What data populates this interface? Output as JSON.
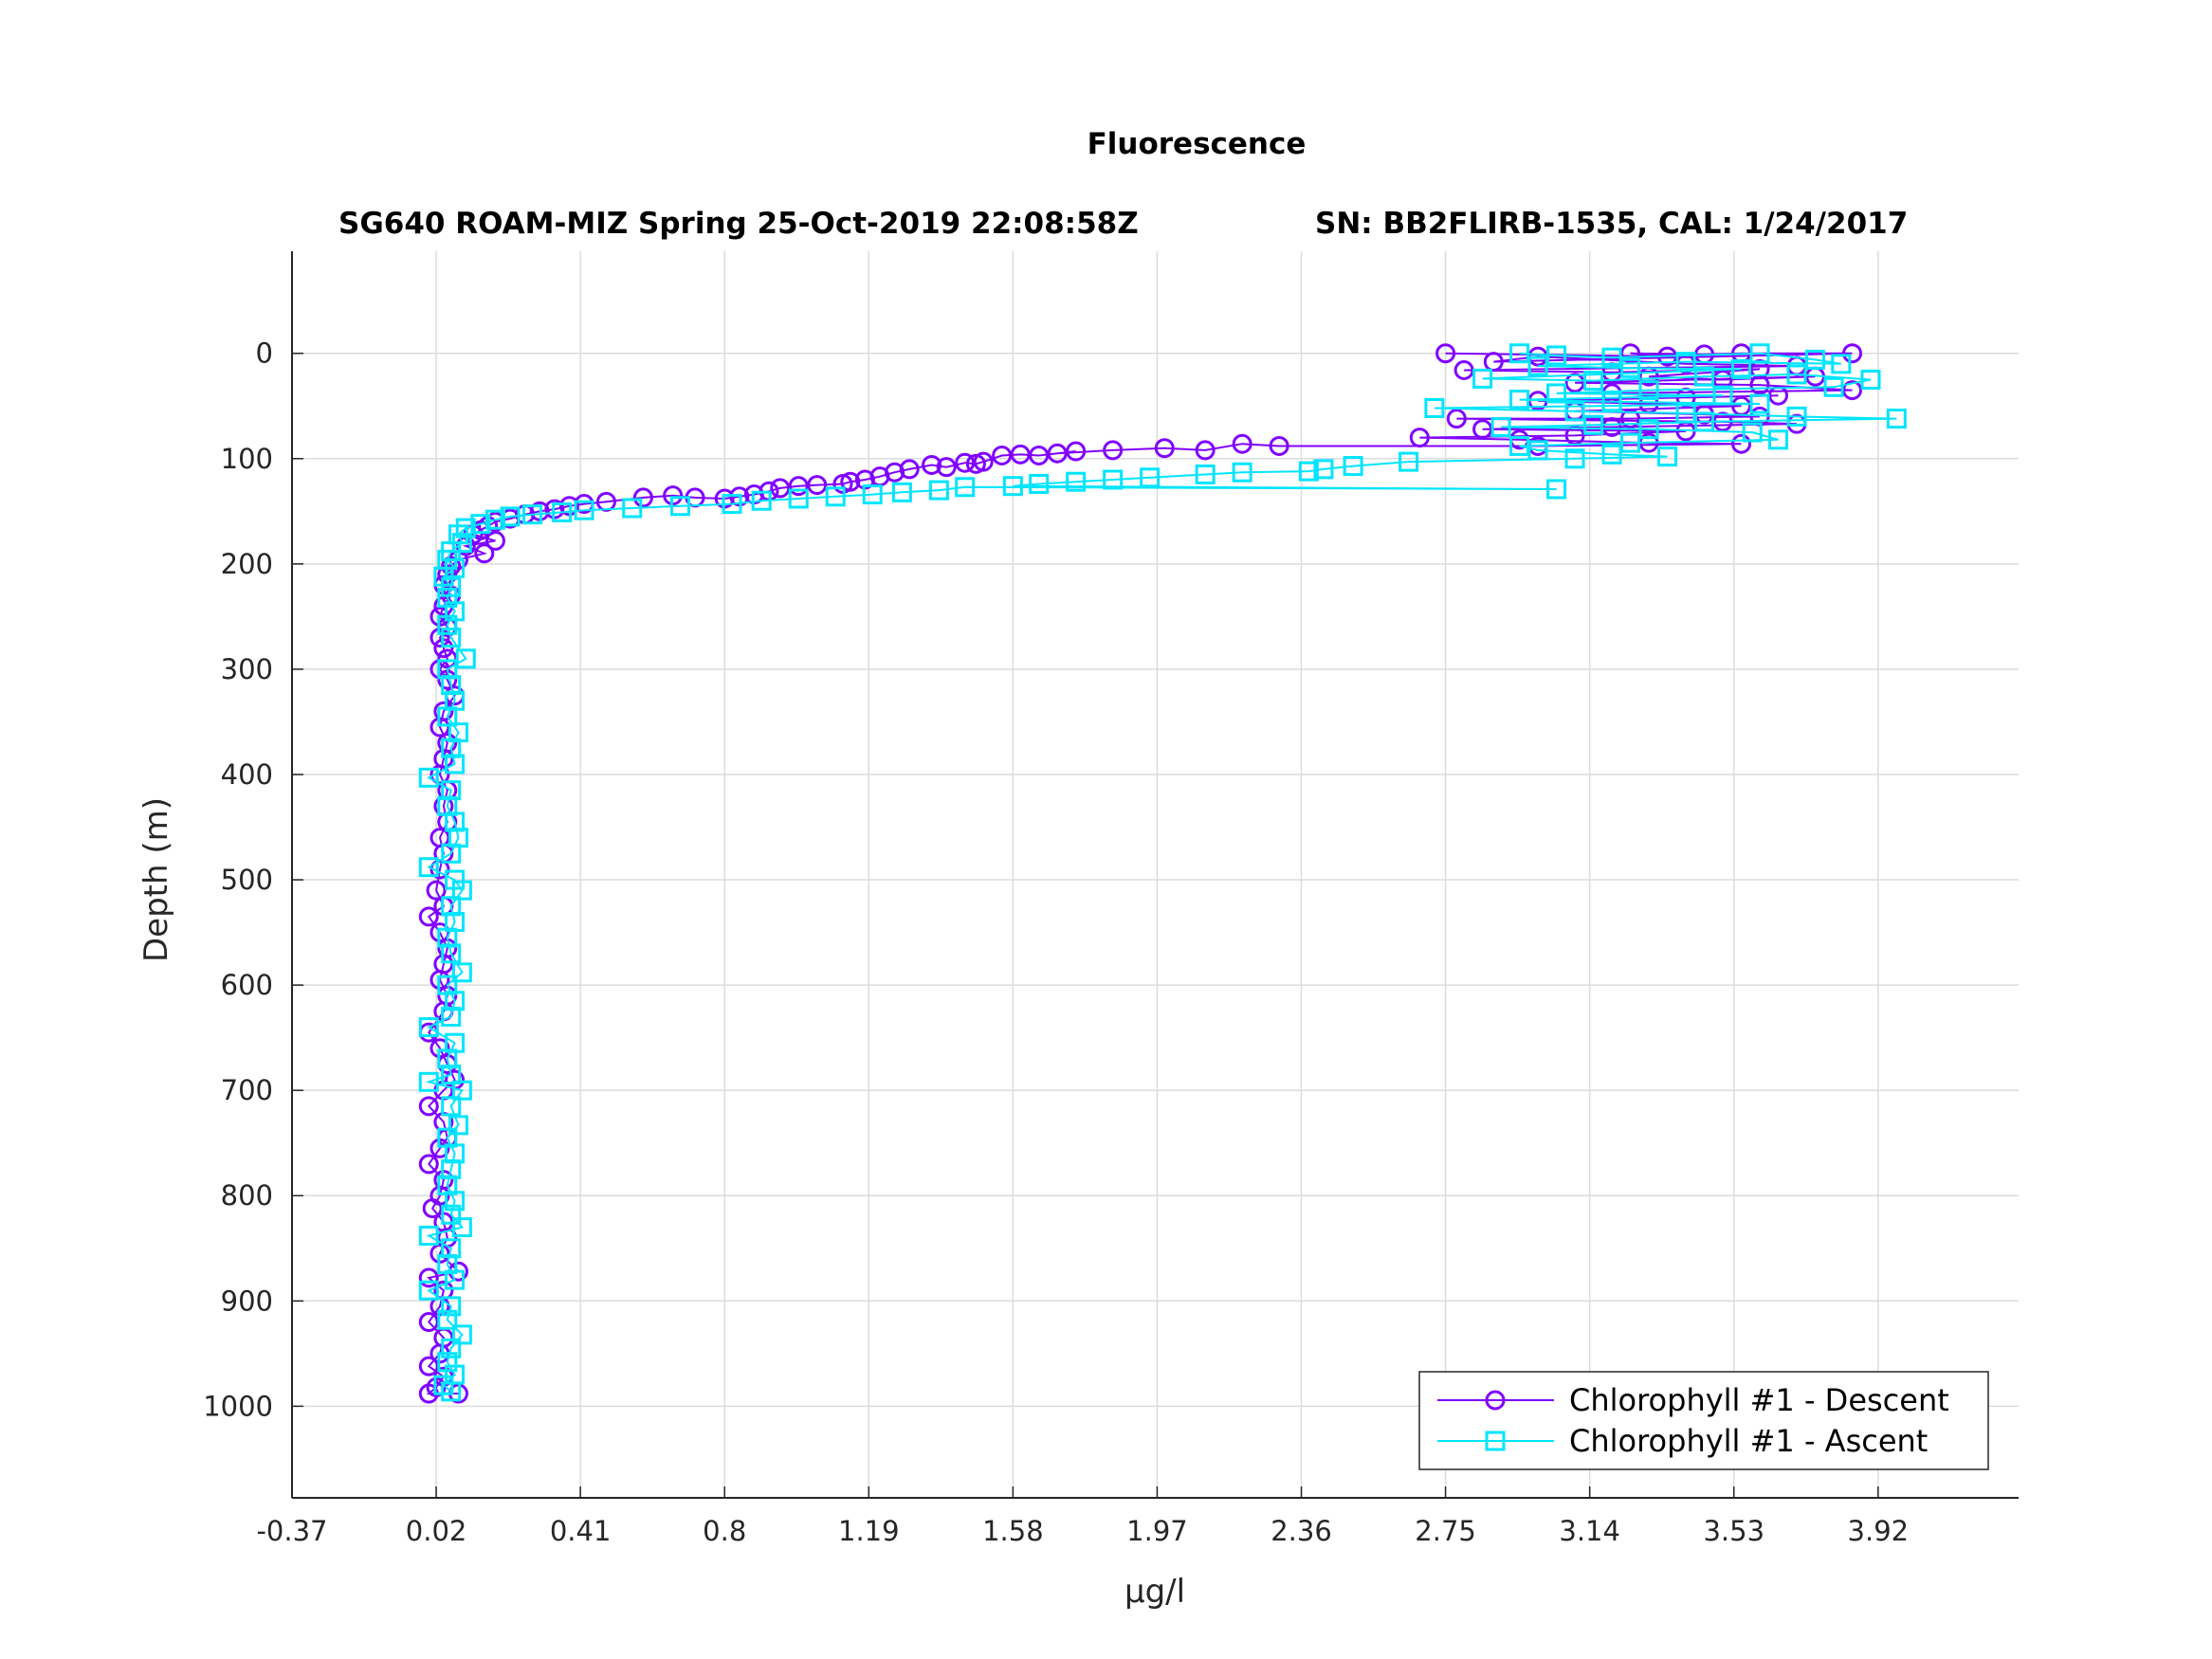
{
  "chart_data": {
    "type": "scatter",
    "title": "Fluorescence",
    "subtitle_left": "SG640 ROAM-MIZ Spring 25-Oct-2019 22:08:58Z",
    "subtitle_right": "SN: BB2FLIRB-1535, CAL: 1/24/2017",
    "xlabel": "μg/l",
    "ylabel": "Depth (m)",
    "xlim": [
      -0.37,
      4.3
    ],
    "ylim": [
      -97,
      1087
    ],
    "y_reversed": true,
    "grid": true,
    "legend_position": "bottom-right",
    "xticks": [
      "-0.37",
      "0.02",
      "0.41",
      "0.8",
      "1.19",
      "1.58",
      "1.97",
      "2.36",
      "2.75",
      "3.14",
      "3.53",
      "3.92"
    ],
    "yticks": [
      "0",
      "100",
      "200",
      "300",
      "400",
      "500",
      "600",
      "700",
      "800",
      "900",
      "1000"
    ],
    "series": [
      {
        "name": "Chlorophyll #1 - Descent",
        "color": "#8000ff",
        "marker": "circle",
        "points": [
          [
            2.75,
            0
          ],
          [
            3.35,
            3
          ],
          [
            3.25,
            0
          ],
          [
            3.45,
            1
          ],
          [
            3.55,
            0
          ],
          [
            3.85,
            0
          ],
          [
            2.88,
            8
          ],
          [
            3.0,
            3
          ],
          [
            3.4,
            10
          ],
          [
            3.7,
            12
          ],
          [
            2.8,
            16
          ],
          [
            3.2,
            18
          ],
          [
            3.6,
            15
          ],
          [
            3.3,
            22
          ],
          [
            3.5,
            25
          ],
          [
            3.75,
            22
          ],
          [
            3.1,
            28
          ],
          [
            3.6,
            30
          ],
          [
            3.85,
            35
          ],
          [
            3.2,
            38
          ],
          [
            3.4,
            42
          ],
          [
            3.65,
            40
          ],
          [
            3.0,
            45
          ],
          [
            3.3,
            48
          ],
          [
            3.55,
            50
          ],
          [
            3.1,
            55
          ],
          [
            3.45,
            58
          ],
          [
            3.6,
            60
          ],
          [
            3.25,
            62
          ],
          [
            2.78,
            62
          ],
          [
            3.5,
            65
          ],
          [
            3.7,
            67
          ],
          [
            3.2,
            70
          ],
          [
            2.85,
            72
          ],
          [
            3.4,
            74
          ],
          [
            3.1,
            78
          ],
          [
            2.68,
            80
          ],
          [
            2.95,
            82
          ],
          [
            3.3,
            85
          ],
          [
            3.55,
            86
          ],
          [
            3.0,
            88
          ],
          [
            2.3,
            88
          ],
          [
            2.2,
            86
          ],
          [
            2.1,
            92
          ],
          [
            1.99,
            90
          ],
          [
            1.85,
            92
          ],
          [
            1.7,
            95
          ],
          [
            1.75,
            93
          ],
          [
            1.65,
            97
          ],
          [
            1.6,
            96
          ],
          [
            1.55,
            97
          ],
          [
            1.5,
            103
          ],
          [
            1.48,
            105
          ],
          [
            1.45,
            104
          ],
          [
            1.4,
            108
          ],
          [
            1.36,
            106
          ],
          [
            1.3,
            110
          ],
          [
            1.26,
            113
          ],
          [
            1.22,
            117
          ],
          [
            1.18,
            120
          ],
          [
            1.14,
            122
          ],
          [
            1.12,
            124
          ],
          [
            1.05,
            125
          ],
          [
            1.0,
            126
          ],
          [
            0.95,
            128
          ],
          [
            0.92,
            131
          ],
          [
            0.88,
            134
          ],
          [
            0.84,
            136
          ],
          [
            0.8,
            138
          ],
          [
            0.72,
            137
          ],
          [
            0.66,
            135
          ],
          [
            0.58,
            137
          ],
          [
            0.48,
            141
          ],
          [
            0.42,
            143
          ],
          [
            0.38,
            145
          ],
          [
            0.34,
            148
          ],
          [
            0.3,
            150
          ],
          [
            0.26,
            153
          ],
          [
            0.22,
            157
          ],
          [
            0.18,
            160
          ],
          [
            0.16,
            164
          ],
          [
            0.14,
            168
          ],
          [
            0.12,
            172
          ],
          [
            0.18,
            178
          ],
          [
            0.1,
            183
          ],
          [
            0.15,
            190
          ],
          [
            0.08,
            196
          ],
          [
            0.06,
            202
          ],
          [
            0.05,
            210
          ],
          [
            0.04,
            220
          ],
          [
            0.06,
            230
          ],
          [
            0.04,
            240
          ],
          [
            0.03,
            250
          ],
          [
            0.05,
            260
          ],
          [
            0.03,
            270
          ],
          [
            0.04,
            280
          ],
          [
            0.05,
            290
          ],
          [
            0.03,
            300
          ],
          [
            0.05,
            310
          ],
          [
            0.07,
            325
          ],
          [
            0.04,
            340
          ],
          [
            0.03,
            355
          ],
          [
            0.05,
            370
          ],
          [
            0.04,
            385
          ],
          [
            0.03,
            400
          ],
          [
            0.05,
            415
          ],
          [
            0.04,
            430
          ],
          [
            0.05,
            445
          ],
          [
            0.03,
            460
          ],
          [
            0.04,
            475
          ],
          [
            0.03,
            490
          ],
          [
            0.02,
            510
          ],
          [
            0.04,
            525
          ],
          [
            0.0,
            535
          ],
          [
            0.03,
            550
          ],
          [
            0.05,
            565
          ],
          [
            0.04,
            580
          ],
          [
            0.03,
            595
          ],
          [
            0.05,
            610
          ],
          [
            0.04,
            625
          ],
          [
            0.0,
            645
          ],
          [
            0.03,
            660
          ],
          [
            0.05,
            675
          ],
          [
            0.07,
            690
          ],
          [
            0.04,
            700
          ],
          [
            0.0,
            715
          ],
          [
            0.04,
            730
          ],
          [
            0.05,
            745
          ],
          [
            0.03,
            755
          ],
          [
            0.0,
            770
          ],
          [
            0.04,
            785
          ],
          [
            0.03,
            800
          ],
          [
            0.01,
            812
          ],
          [
            0.04,
            825
          ],
          [
            0.05,
            840
          ],
          [
            0.03,
            855
          ],
          [
            0.08,
            872
          ],
          [
            0.0,
            878
          ],
          [
            0.04,
            890
          ],
          [
            0.03,
            905
          ],
          [
            0.0,
            920
          ],
          [
            0.04,
            935
          ],
          [
            0.03,
            950
          ],
          [
            0.0,
            962
          ],
          [
            0.04,
            972
          ],
          [
            0.02,
            982
          ],
          [
            0.0,
            988
          ],
          [
            0.08,
            988
          ]
        ]
      },
      {
        "name": "Chlorophyll #1 - Ascent",
        "color": "#00e5ff",
        "marker": "square",
        "points": [
          [
            2.95,
            0
          ],
          [
            3.05,
            2
          ],
          [
            3.2,
            4
          ],
          [
            3.6,
            0
          ],
          [
            3.75,
            6
          ],
          [
            3.82,
            10
          ],
          [
            3.4,
            8
          ],
          [
            3.0,
            12
          ],
          [
            3.25,
            14
          ],
          [
            3.55,
            15
          ],
          [
            2.85,
            24
          ],
          [
            3.15,
            26
          ],
          [
            3.45,
            22
          ],
          [
            3.7,
            20
          ],
          [
            3.9,
            25
          ],
          [
            3.8,
            32
          ],
          [
            3.3,
            35
          ],
          [
            3.05,
            38
          ],
          [
            3.5,
            40
          ],
          [
            2.95,
            44
          ],
          [
            3.2,
            46
          ],
          [
            3.6,
            48
          ],
          [
            2.72,
            52
          ],
          [
            3.1,
            55
          ],
          [
            3.4,
            57
          ],
          [
            3.7,
            60
          ],
          [
            3.97,
            62
          ],
          [
            3.45,
            65
          ],
          [
            3.15,
            68
          ],
          [
            2.9,
            70
          ],
          [
            3.3,
            72
          ],
          [
            3.58,
            75
          ],
          [
            3.65,
            82
          ],
          [
            3.25,
            85
          ],
          [
            2.95,
            88
          ],
          [
            3.0,
            92
          ],
          [
            3.2,
            96
          ],
          [
            3.35,
            98
          ],
          [
            3.1,
            100
          ],
          [
            2.65,
            103
          ],
          [
            2.5,
            107
          ],
          [
            2.42,
            110
          ],
          [
            2.38,
            112
          ],
          [
            2.2,
            113
          ],
          [
            2.1,
            115
          ],
          [
            1.95,
            118
          ],
          [
            1.85,
            120
          ],
          [
            1.75,
            122
          ],
          [
            1.65,
            124
          ],
          [
            1.58,
            126
          ],
          [
            3.05,
            129
          ],
          [
            1.45,
            127
          ],
          [
            1.38,
            130
          ],
          [
            1.28,
            132
          ],
          [
            1.2,
            134
          ],
          [
            1.1,
            136
          ],
          [
            1.0,
            138
          ],
          [
            0.9,
            140
          ],
          [
            0.82,
            143
          ],
          [
            0.68,
            145
          ],
          [
            0.55,
            147
          ],
          [
            0.42,
            149
          ],
          [
            0.36,
            151
          ],
          [
            0.28,
            153
          ],
          [
            0.22,
            155
          ],
          [
            0.18,
            158
          ],
          [
            0.14,
            162
          ],
          [
            0.1,
            166
          ],
          [
            0.08,
            172
          ],
          [
            0.09,
            180
          ],
          [
            0.06,
            188
          ],
          [
            0.05,
            196
          ],
          [
            0.07,
            204
          ],
          [
            0.04,
            212
          ],
          [
            0.06,
            222
          ],
          [
            0.05,
            232
          ],
          [
            0.07,
            245
          ],
          [
            0.05,
            258
          ],
          [
            0.06,
            270
          ],
          [
            0.1,
            290
          ],
          [
            0.05,
            300
          ],
          [
            0.06,
            315
          ],
          [
            0.07,
            330
          ],
          [
            0.05,
            345
          ],
          [
            0.08,
            360
          ],
          [
            0.06,
            375
          ],
          [
            0.07,
            390
          ],
          [
            0.0,
            403
          ],
          [
            0.06,
            415
          ],
          [
            0.05,
            430
          ],
          [
            0.07,
            445
          ],
          [
            0.08,
            460
          ],
          [
            0.06,
            475
          ],
          [
            0.0,
            488
          ],
          [
            0.07,
            500
          ],
          [
            0.09,
            510
          ],
          [
            0.06,
            525
          ],
          [
            0.07,
            540
          ],
          [
            0.05,
            555
          ],
          [
            0.06,
            570
          ],
          [
            0.09,
            588
          ],
          [
            0.05,
            600
          ],
          [
            0.07,
            615
          ],
          [
            0.06,
            630
          ],
          [
            0.0,
            640
          ],
          [
            0.07,
            655
          ],
          [
            0.05,
            670
          ],
          [
            0.06,
            685
          ],
          [
            0.0,
            692
          ],
          [
            0.09,
            700
          ],
          [
            0.06,
            715
          ],
          [
            0.08,
            733
          ],
          [
            0.05,
            745
          ],
          [
            0.07,
            760
          ],
          [
            0.06,
            775
          ],
          [
            0.05,
            790
          ],
          [
            0.07,
            805
          ],
          [
            0.06,
            818
          ],
          [
            0.09,
            830
          ],
          [
            0.0,
            838
          ],
          [
            0.06,
            850
          ],
          [
            0.05,
            865
          ],
          [
            0.07,
            880
          ],
          [
            0.0,
            890
          ],
          [
            0.06,
            905
          ],
          [
            0.05,
            918
          ],
          [
            0.09,
            932
          ],
          [
            0.06,
            945
          ],
          [
            0.05,
            958
          ],
          [
            0.07,
            970
          ],
          [
            0.04,
            980
          ],
          [
            0.06,
            986
          ]
        ]
      }
    ]
  }
}
